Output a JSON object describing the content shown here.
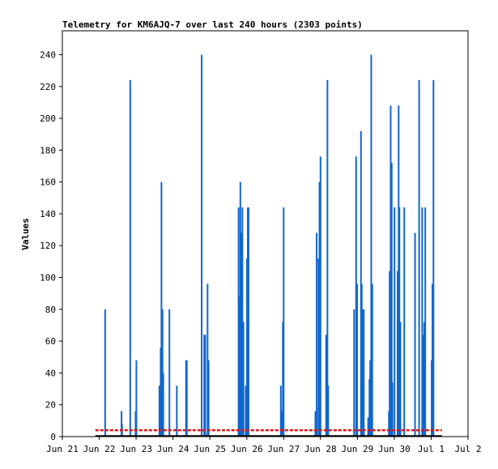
{
  "chart_data": {
    "type": "line",
    "title": "Telemetry for KM6AJQ-7 over last 240 hours (2303 points)",
    "ylabel": "Values",
    "xlabel": "",
    "ylim": [
      0,
      255
    ],
    "xlim": [
      "2021-06-21T00:00",
      "2021-07-02T00:00"
    ],
    "grid": false,
    "legend": "none",
    "x_ticks": [
      "Jun 21",
      "Jun 22",
      "Jun 23",
      "Jun 24",
      "Jun 25",
      "Jun 26",
      "Jun 27",
      "Jun 28",
      "Jun 29",
      "Jun 30",
      "Jul 1",
      "Jul 2"
    ],
    "y_ticks": [
      0,
      20,
      40,
      60,
      80,
      100,
      120,
      140,
      160,
      180,
      200,
      220,
      240
    ],
    "colors": {
      "spikes": "#1166cc",
      "baseline": "#e61010",
      "zero": "#000000"
    },
    "series": [
      {
        "style": "spikes",
        "points": [
          [
            "2021-06-22T03:50",
            80
          ],
          [
            "2021-06-22T14:30",
            16
          ],
          [
            "2021-06-22T14:50",
            8
          ],
          [
            "2021-06-22T20:10",
            224
          ],
          [
            "2021-06-22T23:40",
            16
          ],
          [
            "2021-06-23T00:10",
            48
          ],
          [
            "2021-06-23T15:10",
            32
          ],
          [
            "2021-06-23T16:00",
            56
          ],
          [
            "2021-06-23T16:30",
            160
          ],
          [
            "2021-06-23T17:10",
            80
          ],
          [
            "2021-06-23T17:40",
            40
          ],
          [
            "2021-06-23T21:40",
            80
          ],
          [
            "2021-06-24T02:30",
            32
          ],
          [
            "2021-06-24T08:30",
            48
          ],
          [
            "2021-06-24T09:00",
            48
          ],
          [
            "2021-06-24T18:40",
            240
          ],
          [
            "2021-06-24T20:20",
            64
          ],
          [
            "2021-06-24T21:00",
            64
          ],
          [
            "2021-06-24T22:30",
            96
          ],
          [
            "2021-06-24T23:10",
            48
          ],
          [
            "2021-06-25T18:40",
            144
          ],
          [
            "2021-06-25T19:20",
            88
          ],
          [
            "2021-06-25T19:50",
            160
          ],
          [
            "2021-06-25T20:40",
            128
          ],
          [
            "2021-06-25T21:10",
            144
          ],
          [
            "2021-06-25T21:50",
            72
          ],
          [
            "2021-06-25T23:20",
            32
          ],
          [
            "2021-06-26T00:10",
            112
          ],
          [
            "2021-06-26T00:40",
            144
          ],
          [
            "2021-06-26T01:10",
            144
          ],
          [
            "2021-06-26T22:10",
            32
          ],
          [
            "2021-06-26T22:40",
            16
          ],
          [
            "2021-06-26T23:30",
            72
          ],
          [
            "2021-06-27T00:00",
            144
          ],
          [
            "2021-06-27T20:40",
            16
          ],
          [
            "2021-06-27T21:30",
            128
          ],
          [
            "2021-06-27T22:40",
            112
          ],
          [
            "2021-06-27T23:20",
            160
          ],
          [
            "2021-06-28T00:00",
            176
          ],
          [
            "2021-06-28T03:40",
            64
          ],
          [
            "2021-06-28T04:30",
            224
          ],
          [
            "2021-06-28T05:00",
            32
          ],
          [
            "2021-06-28T21:50",
            80
          ],
          [
            "2021-06-28T23:10",
            176
          ],
          [
            "2021-06-28T23:50",
            96
          ],
          [
            "2021-06-29T02:20",
            192
          ],
          [
            "2021-06-29T02:50",
            96
          ],
          [
            "2021-06-29T03:30",
            80
          ],
          [
            "2021-06-29T04:10",
            80
          ],
          [
            "2021-06-29T07:00",
            12
          ],
          [
            "2021-06-29T07:50",
            36
          ],
          [
            "2021-06-29T08:20",
            48
          ],
          [
            "2021-06-29T09:00",
            240
          ],
          [
            "2021-06-29T09:40",
            96
          ],
          [
            "2021-06-29T20:30",
            16
          ],
          [
            "2021-06-29T21:00",
            104
          ],
          [
            "2021-06-29T21:40",
            208
          ],
          [
            "2021-06-29T22:20",
            172
          ],
          [
            "2021-06-29T22:50",
            34
          ],
          [
            "2021-06-30T00:10",
            144
          ],
          [
            "2021-06-30T02:10",
            104
          ],
          [
            "2021-06-30T02:50",
            208
          ],
          [
            "2021-06-30T03:20",
            144
          ],
          [
            "2021-06-30T04:00",
            72
          ],
          [
            "2021-06-30T06:30",
            144
          ],
          [
            "2021-06-30T13:30",
            128
          ],
          [
            "2021-06-30T16:10",
            224
          ],
          [
            "2021-06-30T18:10",
            144
          ],
          [
            "2021-06-30T18:50",
            64
          ],
          [
            "2021-06-30T19:30",
            72
          ],
          [
            "2021-06-30T20:10",
            144
          ],
          [
            "2021-07-01T00:20",
            48
          ],
          [
            "2021-07-01T00:50",
            96
          ],
          [
            "2021-07-01T01:30",
            224
          ]
        ]
      },
      {
        "style": "baseline-dashed",
        "x_range": [
          "2021-06-21T21:30",
          "2021-07-01T07:00"
        ],
        "y": 4
      },
      {
        "style": "zero-line",
        "x_range": [
          "2021-06-21T21:30",
          "2021-07-01T07:00"
        ],
        "y": 0
      }
    ]
  }
}
